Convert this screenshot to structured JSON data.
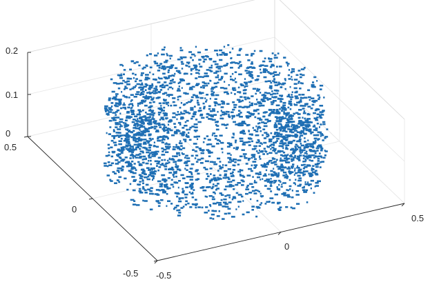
{
  "chart_data": {
    "type": "scatter",
    "dimensions": 3,
    "title": "",
    "xlabel": "",
    "ylabel": "",
    "zlabel": "",
    "xlim": [
      -0.5,
      0.5
    ],
    "ylim": [
      -0.5,
      0.5
    ],
    "zlim": [
      0,
      0.2
    ],
    "xticks": [
      "-0.5",
      "0",
      "0.5"
    ],
    "yticks": [
      "-0.5",
      "0",
      "0.5"
    ],
    "zticks": [
      "0",
      "0.1",
      "0.2"
    ],
    "grid": true,
    "marker_color": "#1f6fb4",
    "series": [
      {
        "description_shape": "ring-shaped point cloud",
        "ring_center": [
          0.0,
          0.0
        ],
        "ring_inner_radius": 0.22,
        "ring_outer_radius": 0.4,
        "z_range": [
          0.0,
          0.18
        ],
        "point_count": 2600
      }
    ]
  }
}
